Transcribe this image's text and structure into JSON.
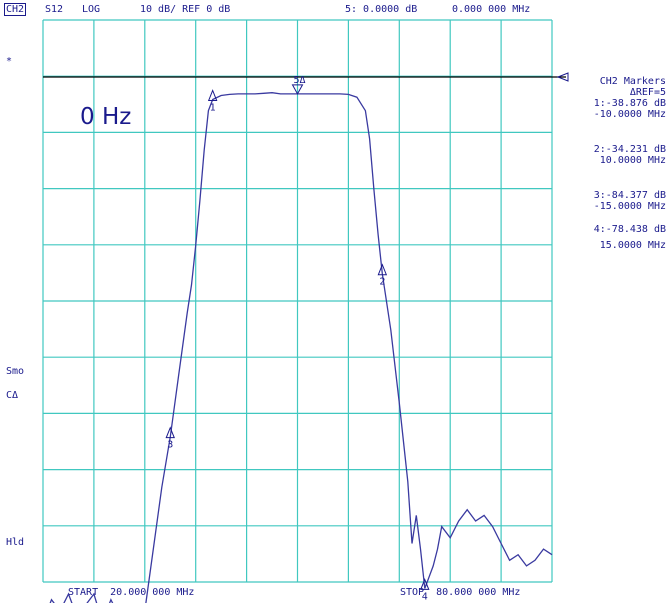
{
  "header": {
    "channel": "CH2",
    "param": "S12",
    "format": "LOG",
    "scale": "10 dB/ REF 0 dB",
    "marker_readout": "5: 0.0000 dB",
    "marker_freq": "0.000 000 MHz"
  },
  "left_annotations": {
    "star": "*",
    "smo": "Smo",
    "cdelta": "CΔ",
    "hld": "Hld"
  },
  "overlay_freq": "0 Hz",
  "markers_panel": {
    "title": "CH2 Markers",
    "ref": "ΔREF=5",
    "m1_value": "1:-38.876 dB",
    "m1_freq": "-10.0000 MHz",
    "m2_value": "2:-34.231 dB",
    "m2_freq": "10.0000 MHz",
    "m3_value": "3:-84.377 dB",
    "m3_freq": "-15.0000 MHz",
    "m4_value": "4:-78.438 dB",
    "m4_freq": "15.0000 MHz"
  },
  "footer": {
    "start": "START  20.000 000 MHz",
    "stop": "STOP  80.000 000 MHz"
  },
  "colors": {
    "trace": "#3a3aa0",
    "grid": "#40c8c0",
    "text": "#1a1a8c",
    "ref_line": "#000000"
  },
  "chart_data": {
    "type": "line",
    "xlabel": "",
    "ylabel": "",
    "xlim": [
      20,
      80
    ],
    "ylim": [
      -100,
      0
    ],
    "grid": true,
    "reference_level_db": 0,
    "center_mhz": 50,
    "series": [
      {
        "x": [
          20.0,
          21.0,
          22.0,
          23.0,
          24.0,
          25.0,
          26.0,
          27.0,
          28.0,
          29.0,
          30.0,
          31.0,
          31.5,
          32.0,
          33.0,
          34.0,
          35.0,
          36.0,
          37.0,
          37.5,
          38.0,
          38.5,
          39.0,
          39.5,
          40.0,
          41.0,
          42.0,
          43.0,
          44.0,
          45.0,
          46.0,
          47.0,
          48.0,
          49.0,
          50.0,
          51.0,
          52.0,
          53.0,
          54.0,
          55.0,
          56.0,
          57.0,
          58.0,
          58.5,
          59.0,
          59.5,
          60.0,
          61.0,
          62.0,
          63.0,
          63.5,
          64.0,
          64.5,
          65.0,
          65.5,
          66.0,
          66.5,
          67.0,
          68.0,
          69.0,
          70.0,
          71.0,
          72.0,
          73.0,
          74.0,
          75.0,
          76.0,
          77.0,
          78.0,
          79.0,
          80.0
        ],
        "values": [
          -97,
          -93,
          -95,
          -92,
          -96,
          -94,
          -92,
          -97,
          -93,
          -96,
          -94,
          -98,
          -99,
          -95,
          -84,
          -73,
          -64,
          -53,
          -42,
          -37,
          -30,
          -22,
          -13,
          -6,
          -4,
          -3.3,
          -3.1,
          -3.0,
          -3.0,
          -3.0,
          -2.9,
          -2.8,
          -3.0,
          -3.0,
          -3.0,
          -3.0,
          -3.0,
          -3.0,
          -3.0,
          -3.0,
          -3.1,
          -3.6,
          -6,
          -11,
          -20,
          -28,
          -35,
          -45,
          -58,
          -72,
          -83,
          -78,
          -84,
          -91,
          -89,
          -87,
          -84,
          -80,
          -82,
          -79,
          -77,
          -79,
          -78,
          -80,
          -83,
          -86,
          -85,
          -87,
          -86,
          -84,
          -85
        ]
      }
    ],
    "markers": [
      {
        "id": "1",
        "x": 40,
        "value": -38.876
      },
      {
        "id": "2",
        "x": 60,
        "value": -34.231
      },
      {
        "id": "3",
        "x": 35,
        "value": -84.377
      },
      {
        "id": "4",
        "x": 65,
        "value": -78.438
      },
      {
        "id": "5",
        "x": 50,
        "value": 0.0,
        "reference": true
      }
    ]
  }
}
